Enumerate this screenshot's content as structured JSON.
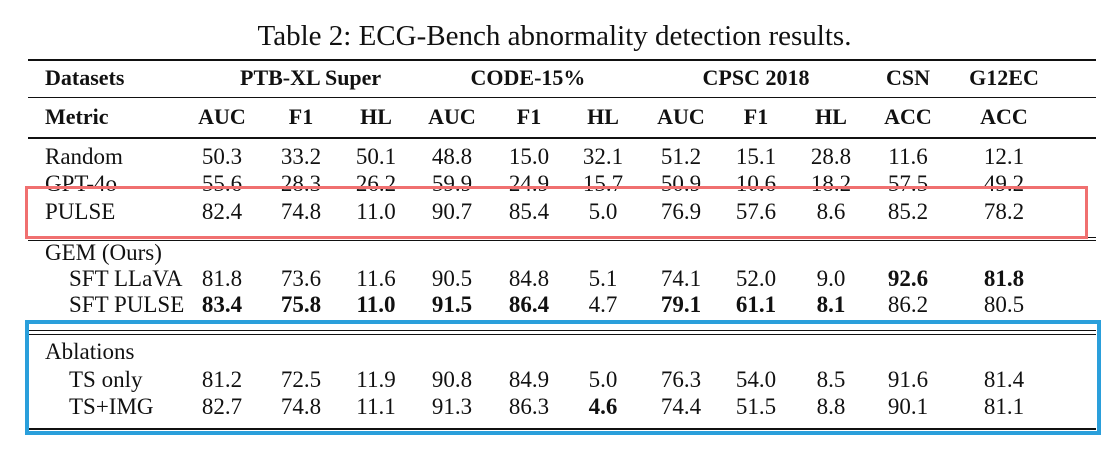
{
  "caption": "Table 2: ECG-Bench abnormality detection results.",
  "header": {
    "datasets_label": "Datasets",
    "metric_label": "Metric",
    "groups": [
      "PTB-XL Super",
      "CODE-15%",
      "CPSC 2018",
      "CSN",
      "G12EC"
    ],
    "metrics": [
      "AUC",
      "F1",
      "HL",
      "AUC",
      "F1",
      "HL",
      "AUC",
      "F1",
      "HL",
      "ACC",
      "ACC"
    ]
  },
  "rows": [
    {
      "label": "Random",
      "values": [
        "50.3",
        "33.2",
        "50.1",
        "48.8",
        "15.0",
        "32.1",
        "51.2",
        "15.1",
        "28.8",
        "11.6",
        "12.1"
      ],
      "bold": []
    },
    {
      "label": "GPT-4o",
      "values": [
        "55.6",
        "28.3",
        "26.2",
        "59.9",
        "24.9",
        "15.7",
        "50.9",
        "10.6",
        "18.2",
        "57.5",
        "49.2"
      ],
      "bold": []
    },
    {
      "label": "PULSE",
      "values": [
        "82.4",
        "74.8",
        "11.0",
        "90.7",
        "85.4",
        "5.0",
        "76.9",
        "57.6",
        "8.6",
        "85.2",
        "78.2"
      ],
      "bold": []
    },
    {
      "label": "GEM (Ours)",
      "values": [],
      "bold": []
    },
    {
      "label": "SFT LLaVA",
      "values": [
        "81.8",
        "73.6",
        "11.6",
        "90.5",
        "84.8",
        "5.1",
        "74.1",
        "52.0",
        "9.0",
        "92.6",
        "81.8"
      ],
      "bold": [
        9,
        10
      ]
    },
    {
      "label": "SFT PULSE",
      "values": [
        "83.4",
        "75.8",
        "11.0",
        "91.5",
        "86.4",
        "4.7",
        "79.1",
        "61.1",
        "8.1",
        "86.2",
        "80.5"
      ],
      "bold": [
        0,
        1,
        2,
        3,
        4,
        6,
        7,
        8
      ]
    },
    {
      "label": "Ablations",
      "values": [],
      "bold": []
    },
    {
      "label": "TS only",
      "values": [
        "81.2",
        "72.5",
        "11.9",
        "90.8",
        "84.9",
        "5.0",
        "76.3",
        "54.0",
        "8.5",
        "91.6",
        "81.4"
      ],
      "bold": []
    },
    {
      "label": "TS+IMG",
      "values": [
        "82.7",
        "74.8",
        "11.1",
        "91.3",
        "86.3",
        "4.6",
        "74.4",
        "51.5",
        "8.8",
        "90.1",
        "81.1"
      ],
      "bold": [
        5
      ]
    }
  ],
  "highlight_colors": {
    "pulse_box": "#f07070",
    "ablation_box": "#2a9fdb"
  }
}
